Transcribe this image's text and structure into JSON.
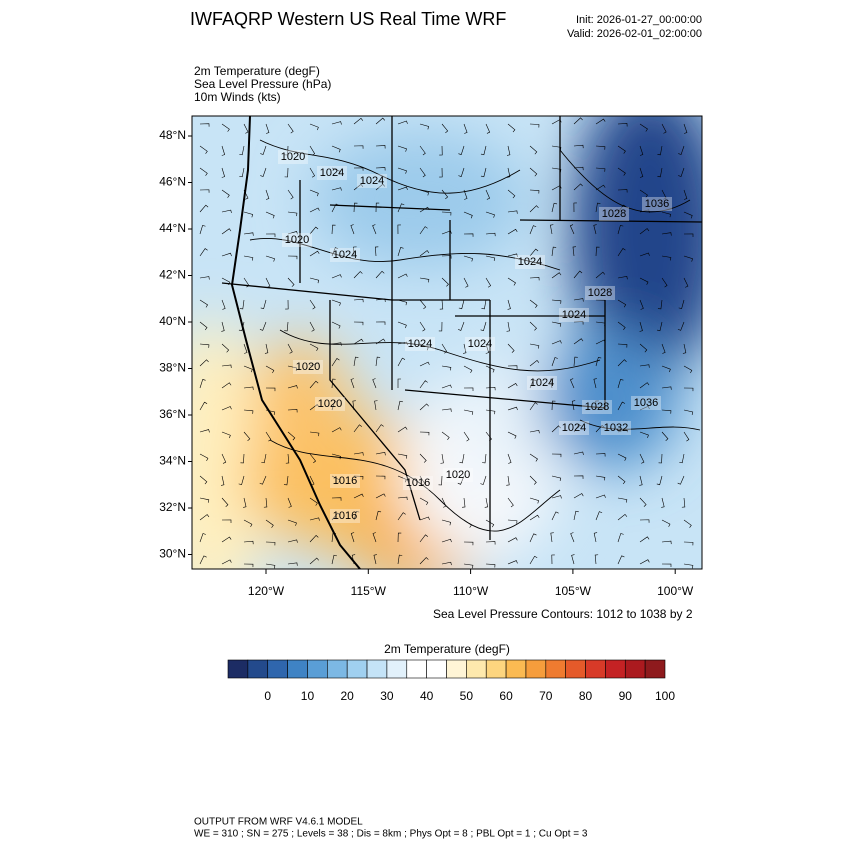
{
  "header": {
    "title": "IWFAQRP Western US Real Time WRF",
    "init": "Init: 2026-01-27_00:00:00",
    "valid": "Valid: 2026-02-01_02:00:00"
  },
  "fields": [
    "2m Temperature   (degF)",
    "Sea Level Pressure   (hPa)",
    "10m Winds   (kts)"
  ],
  "map": {
    "lat_labels": [
      "48°N",
      "46°N",
      "44°N",
      "42°N",
      "40°N",
      "38°N",
      "36°N",
      "34°N",
      "32°N",
      "30°N"
    ],
    "lon_labels": [
      "120°W",
      "115°W",
      "110°W",
      "105°W",
      "100°W"
    ],
    "contour_labels": [
      "1020",
      "1024",
      "1024",
      "1028",
      "1036",
      "1020",
      "1024",
      "1024",
      "1028",
      "1024",
      "1024",
      "1024",
      "1020",
      "1024",
      "1028",
      "1036",
      "1020",
      "1024",
      "1032",
      "1020",
      "1016",
      "1016",
      "1016"
    ],
    "contour_note": "Sea Level Pressure Contours: 1012 to 1038 by 2"
  },
  "colorbar": {
    "title": "2m Temperature  (degF)",
    "lim": [
      -10,
      100
    ],
    "ticks": [
      0,
      10,
      20,
      30,
      40,
      50,
      60,
      70,
      80,
      90,
      100
    ],
    "colors": [
      "#1c2c64",
      "#234a8c",
      "#2f66ad",
      "#3f83c4",
      "#5a9ed6",
      "#7cb8e4",
      "#a0d0f0",
      "#c4e3f7",
      "#e2f1fb",
      "#ffffff",
      "#ffffff",
      "#fff5d6",
      "#fee9ad",
      "#fdd57f",
      "#fbba52",
      "#f69d3c",
      "#ef7b30",
      "#e55a2a",
      "#d83a28",
      "#c42224",
      "#ab1a1f",
      "#8e1a1d"
    ]
  },
  "footer": [
    "OUTPUT FROM WRF V4.6.1 MODEL",
    "WE = 310 ; SN = 275 ; Levels = 38 ; Dis = 8km ; Phys Opt = 8 ; PBL Opt = 1 ; Cu Opt = 3"
  ]
}
